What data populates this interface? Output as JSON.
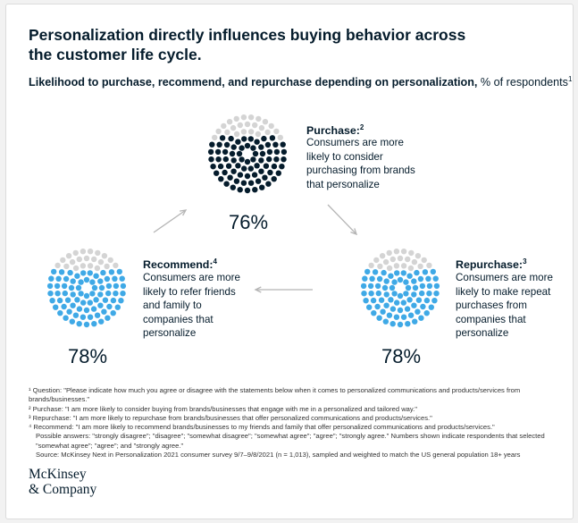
{
  "title": "Personalization directly influences buying behavior across the customer life cycle.",
  "subtitle": {
    "bold": "Likelihood to purchase, recommend, and repurchase depending on personalization,",
    "rest": " % of respondents",
    "sup": "1"
  },
  "chart_data": {
    "type": "dot-circle",
    "unit": "% of respondents",
    "colors": {
      "empty": "#d4d4d4",
      "purchase": "#051c2c",
      "recommend": "#3fa9e6",
      "repurchase": "#3fa9e6"
    },
    "stages": [
      {
        "key": "purchase",
        "name": "Purchase:",
        "sup": "2",
        "value": 76,
        "label": "76%",
        "desc": [
          "Consumers are more",
          "likely to consider",
          "purchasing from brands",
          "that personalize"
        ]
      },
      {
        "key": "recommend",
        "name": "Recommend:",
        "sup": "4",
        "value": 78,
        "label": "78%",
        "desc": [
          "Consumers are more",
          "likely to refer friends",
          "and family to",
          "companies that",
          "personalize"
        ]
      },
      {
        "key": "repurchase",
        "name": "Repurchase:",
        "sup": "3",
        "value": 78,
        "label": "78%",
        "desc": [
          "Consumers are more",
          "likely to make repeat",
          "purchases from",
          "companies that",
          "personalize"
        ]
      }
    ]
  },
  "notes": [
    "¹ Question: \"Please indicate how much you agree or disagree with the statements below when it comes to personalized communications and products/services from brands/businesses.\"",
    "² Purchase: \"I am more likely to consider buying from brands/businesses that engage with me in a personalized and tailored way.\"",
    "³ Repurchase: \"I am more likely to repurchase from brands/businesses that offer personalized communications and products/services.\"",
    "⁴ Recommend: \"I am more likely to recommend brands/businesses to my friends and family that offer personalized communications and products/services.\"",
    "Possible answers: \"strongly disagree\"; \"disagree\"; \"somewhat disagree\"; \"somewhat agree\"; \"agree\"; \"strongly agree.\" Numbers shown indicate respondents that selected \"somewhat agree\"; \"agree\"; and \"strongly agree.\"",
    "Source: McKinsey Next in Personalization 2021 consumer survey 9/7–9/8/2021 (n = 1,013), sampled and weighted to match the US general population 18+ years"
  ],
  "brand": {
    "line1": "McKinsey",
    "line2": "& Company"
  }
}
